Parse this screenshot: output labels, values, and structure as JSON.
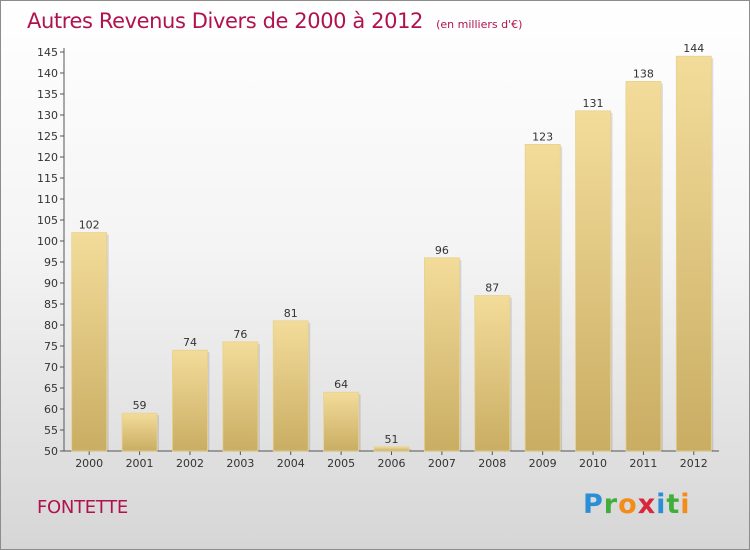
{
  "header": {
    "title": "Autres Revenus Divers de 2000 à 2012",
    "unit": "(en milliers d'€)"
  },
  "footer": {
    "commune": "FONTETTE",
    "logo_letters": [
      "P",
      "r",
      "o",
      "x",
      "i",
      "t",
      "i"
    ],
    "logo_colors": [
      "#2a8fd6",
      "#3fae3a",
      "#f28c1b",
      "#d8263a",
      "#2a8fd6",
      "#3fae3a",
      "#f28c1b"
    ]
  },
  "chart_data": {
    "type": "bar",
    "title": "Autres Revenus Divers de 2000 à 2012",
    "xlabel": "",
    "ylabel": "",
    "categories": [
      "2000",
      "2001",
      "2002",
      "2003",
      "2004",
      "2005",
      "2006",
      "2007",
      "2008",
      "2009",
      "2010",
      "2011",
      "2012"
    ],
    "values": [
      102,
      59,
      74,
      76,
      81,
      64,
      51,
      96,
      87,
      123,
      131,
      138,
      144
    ],
    "ylim": [
      50,
      145
    ],
    "yticks": [
      50,
      55,
      60,
      65,
      70,
      75,
      80,
      85,
      90,
      95,
      100,
      105,
      110,
      115,
      120,
      125,
      130,
      135,
      140,
      145
    ],
    "grid": false,
    "bar_color_light": "#f3dc9a",
    "bar_color_dark": "#c9ad63"
  }
}
